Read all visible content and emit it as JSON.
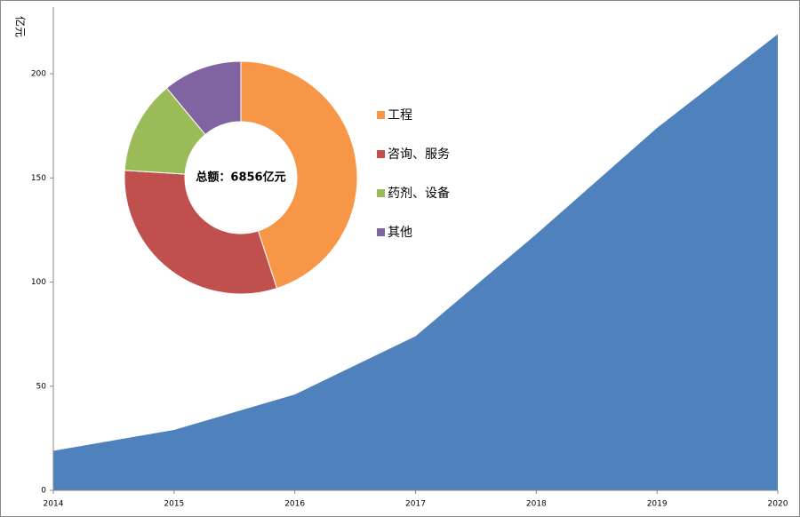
{
  "chart_data": [
    {
      "type": "area",
      "y_label": "亿元",
      "x": [
        2014,
        2015,
        2016,
        2017,
        2018,
        2019,
        2020
      ],
      "values": [
        19,
        29,
        46,
        74,
        123,
        174,
        219
      ],
      "color": "#4f81bd",
      "xlim": [
        2014,
        2020
      ],
      "xticks": [
        2014,
        2015,
        2016,
        2017,
        2018,
        2019,
        2020
      ],
      "ylim": [
        0,
        232
      ],
      "yticks": [
        0,
        50,
        100,
        150,
        200
      ]
    },
    {
      "type": "donut",
      "center_label": "总额：6856亿元",
      "categories": [
        "工程",
        "咨询、服务",
        "药剂、设备",
        "其他"
      ],
      "values": [
        45,
        31,
        13,
        11
      ],
      "colors": [
        "#f79646",
        "#c0504d",
        "#9bbb59",
        "#8064a2"
      ]
    }
  ]
}
